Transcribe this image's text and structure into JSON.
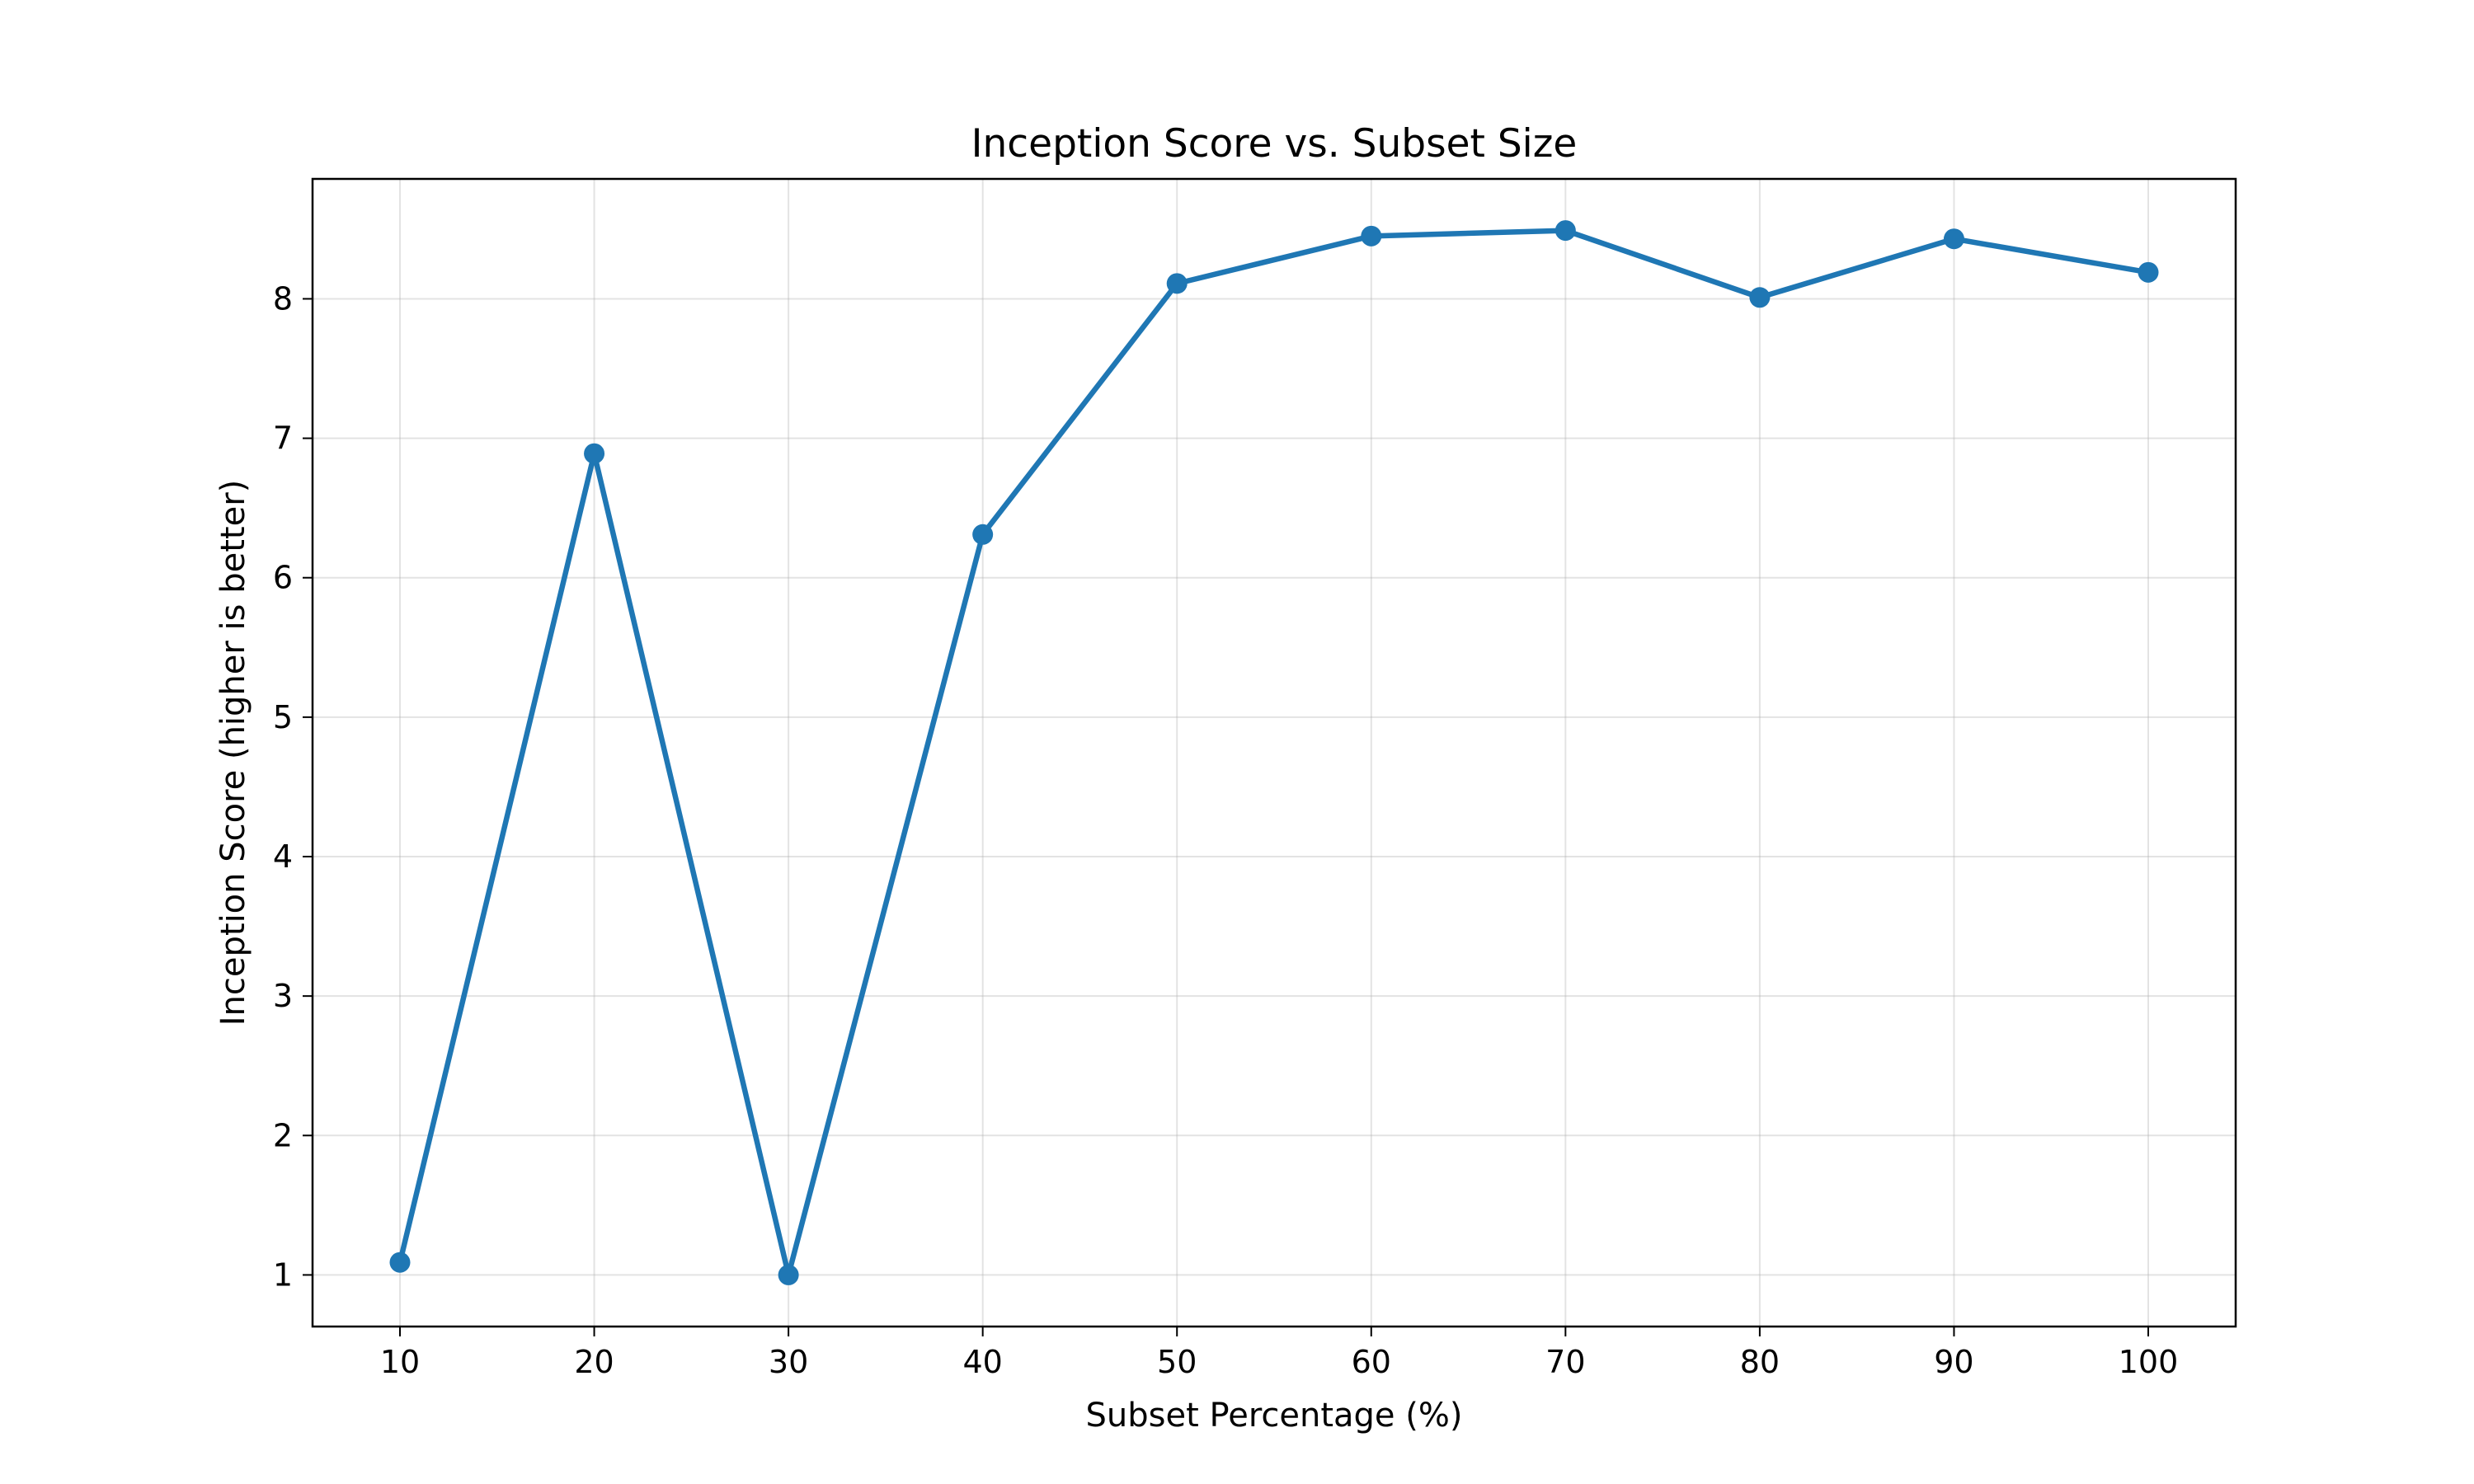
{
  "chart_data": {
    "type": "line",
    "title": "Inception Score vs. Subset Size",
    "xlabel": "Subset Percentage (%)",
    "ylabel": "Inception Score (higher is better)",
    "x": [
      10,
      20,
      30,
      40,
      50,
      60,
      70,
      80,
      90,
      100
    ],
    "xticks": [
      "10",
      "20",
      "30",
      "40",
      "50",
      "60",
      "70",
      "80",
      "90",
      "100"
    ],
    "yticks": [
      "1",
      "2",
      "3",
      "4",
      "5",
      "6",
      "7",
      "8"
    ],
    "xlim": [
      5.5,
      104.5
    ],
    "ylim": [
      0.63,
      8.86
    ],
    "grid": true,
    "series": [
      {
        "values": [
          1.09,
          6.89,
          1.0,
          6.31,
          8.11,
          8.45,
          8.49,
          8.01,
          8.43,
          8.19
        ],
        "color": "#1f77b4",
        "marker": "circle"
      }
    ]
  }
}
